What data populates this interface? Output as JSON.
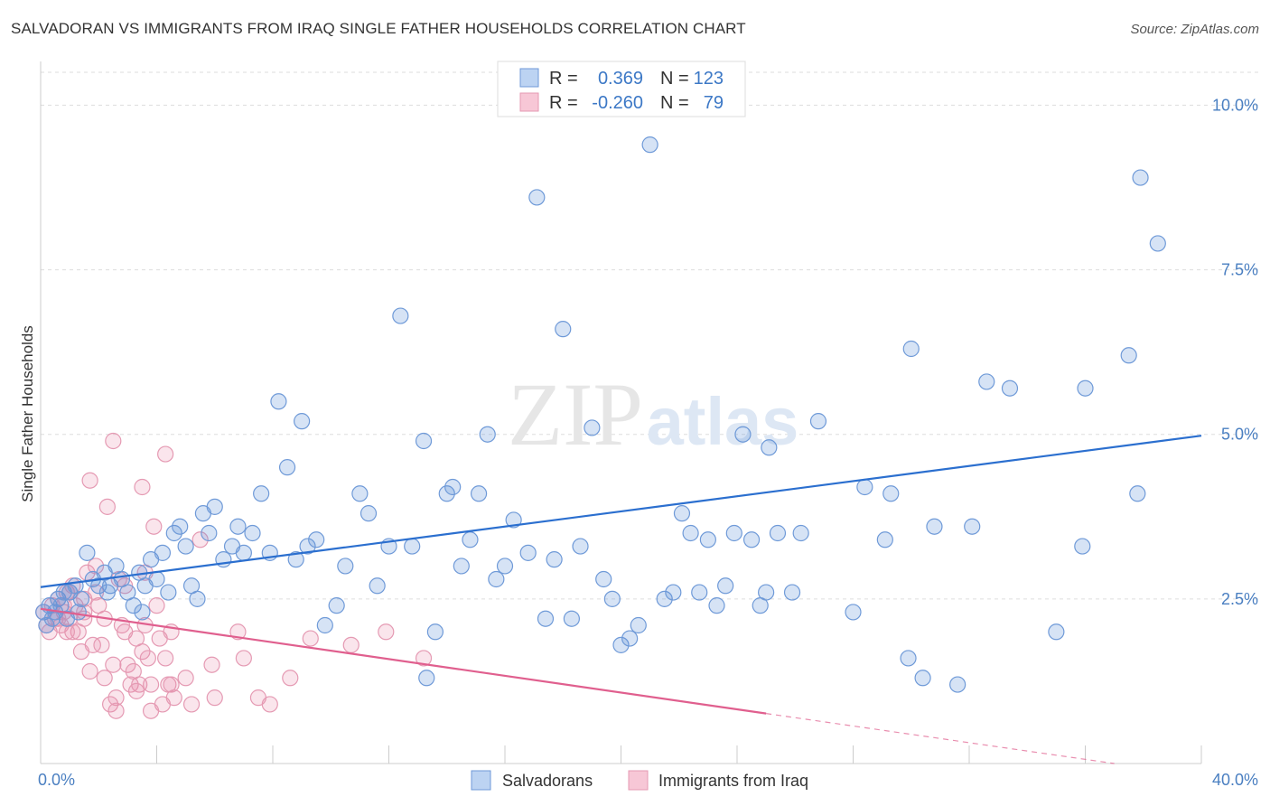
{
  "title": "SALVADORAN VS IMMIGRANTS FROM IRAQ SINGLE FATHER HOUSEHOLDS CORRELATION CHART",
  "source": "Source: ZipAtlas.com",
  "watermark": {
    "zip": "ZIP",
    "atlas": "atlas"
  },
  "colors": {
    "blue": "#5b8fd8",
    "blue_line": "#2b6fcf",
    "pink": "#e88aa8",
    "pink_line": "#e05f8e",
    "grid": "#dddddd",
    "tick": "#4a7fc1"
  },
  "legend_box": {
    "rows": [
      {
        "r_label": "R =",
        "r_value": "0.369",
        "n_label": "N =",
        "n_value": "123"
      },
      {
        "r_label": "R =",
        "r_value": "-0.260",
        "n_label": "N =",
        "n_value": "79"
      }
    ]
  },
  "chart_data": {
    "type": "scatter",
    "ylabel": "Single Father Households",
    "xlabel": "",
    "xlim": [
      0,
      40
    ],
    "ylim": [
      0,
      10.5
    ],
    "x_ticks": [
      "0.0%",
      "40.0%"
    ],
    "y_ticks": [
      {
        "value": 2.5,
        "label": "2.5%"
      },
      {
        "value": 5.0,
        "label": "5.0%"
      },
      {
        "value": 7.5,
        "label": "7.5%"
      },
      {
        "value": 10.0,
        "label": "10.0%"
      }
    ],
    "legend_position": "bottom",
    "series": [
      {
        "name": "Salvadorans",
        "color": "#5b8fd8",
        "trend": {
          "x0": 0,
          "y0": 2.68,
          "x1": 40,
          "y1": 4.98
        },
        "points": [
          [
            0.1,
            2.3
          ],
          [
            0.2,
            2.1
          ],
          [
            0.3,
            2.4
          ],
          [
            0.4,
            2.2
          ],
          [
            0.5,
            2.3
          ],
          [
            0.6,
            2.5
          ],
          [
            0.7,
            2.4
          ],
          [
            0.8,
            2.6
          ],
          [
            0.9,
            2.2
          ],
          [
            1.0,
            2.6
          ],
          [
            1.2,
            2.7
          ],
          [
            1.4,
            2.5
          ],
          [
            1.6,
            3.2
          ],
          [
            1.8,
            2.8
          ],
          [
            2.0,
            2.7
          ],
          [
            2.2,
            2.9
          ],
          [
            2.4,
            2.7
          ],
          [
            2.6,
            3.0
          ],
          [
            2.8,
            2.8
          ],
          [
            3.0,
            2.6
          ],
          [
            3.2,
            2.4
          ],
          [
            3.4,
            2.9
          ],
          [
            3.6,
            2.7
          ],
          [
            3.8,
            3.1
          ],
          [
            4.0,
            2.8
          ],
          [
            4.2,
            3.2
          ],
          [
            4.4,
            2.6
          ],
          [
            4.6,
            3.5
          ],
          [
            4.8,
            3.6
          ],
          [
            5.0,
            3.3
          ],
          [
            5.2,
            2.7
          ],
          [
            5.4,
            2.5
          ],
          [
            5.6,
            3.8
          ],
          [
            5.8,
            3.5
          ],
          [
            6.0,
            3.9
          ],
          [
            6.3,
            3.1
          ],
          [
            6.6,
            3.3
          ],
          [
            6.8,
            3.6
          ],
          [
            7.0,
            3.2
          ],
          [
            7.3,
            3.5
          ],
          [
            7.6,
            4.1
          ],
          [
            7.9,
            3.2
          ],
          [
            8.2,
            5.5
          ],
          [
            8.5,
            4.5
          ],
          [
            8.8,
            3.1
          ],
          [
            9.2,
            3.3
          ],
          [
            9.5,
            3.4
          ],
          [
            9.8,
            2.1
          ],
          [
            10.2,
            2.4
          ],
          [
            10.5,
            3.0
          ],
          [
            11.0,
            4.1
          ],
          [
            11.3,
            3.8
          ],
          [
            11.6,
            2.7
          ],
          [
            12.0,
            3.3
          ],
          [
            12.4,
            6.8
          ],
          [
            12.8,
            3.3
          ],
          [
            13.2,
            4.9
          ],
          [
            13.6,
            2.0
          ],
          [
            14.0,
            4.1
          ],
          [
            14.2,
            4.2
          ],
          [
            14.5,
            3.0
          ],
          [
            14.8,
            3.4
          ],
          [
            15.1,
            4.1
          ],
          [
            15.4,
            5.0
          ],
          [
            15.7,
            2.8
          ],
          [
            16.0,
            3.0
          ],
          [
            16.3,
            3.7
          ],
          [
            16.8,
            3.2
          ],
          [
            17.1,
            8.6
          ],
          [
            17.4,
            2.2
          ],
          [
            17.7,
            3.1
          ],
          [
            18.0,
            6.6
          ],
          [
            18.3,
            2.2
          ],
          [
            18.6,
            3.3
          ],
          [
            19.0,
            5.1
          ],
          [
            19.4,
            2.8
          ],
          [
            19.7,
            2.5
          ],
          [
            20.0,
            1.8
          ],
          [
            20.3,
            1.9
          ],
          [
            20.6,
            2.1
          ],
          [
            21.0,
            9.4
          ],
          [
            21.5,
            2.5
          ],
          [
            21.8,
            2.6
          ],
          [
            22.1,
            3.8
          ],
          [
            22.4,
            3.5
          ],
          [
            22.7,
            2.6
          ],
          [
            23.0,
            3.4
          ],
          [
            23.3,
            2.4
          ],
          [
            23.6,
            2.7
          ],
          [
            23.9,
            3.5
          ],
          [
            24.2,
            5.0
          ],
          [
            24.5,
            3.4
          ],
          [
            24.8,
            2.4
          ],
          [
            25.1,
            4.8
          ],
          [
            25.4,
            3.5
          ],
          [
            25.9,
            2.6
          ],
          [
            26.2,
            3.5
          ],
          [
            26.8,
            5.2
          ],
          [
            28.0,
            2.3
          ],
          [
            28.4,
            4.2
          ],
          [
            29.1,
            3.4
          ],
          [
            29.3,
            4.1
          ],
          [
            29.9,
            1.6
          ],
          [
            30.0,
            6.3
          ],
          [
            30.4,
            1.3
          ],
          [
            30.8,
            3.6
          ],
          [
            31.6,
            1.2
          ],
          [
            32.1,
            3.6
          ],
          [
            32.6,
            5.8
          ],
          [
            33.4,
            5.7
          ],
          [
            35.0,
            2.0
          ],
          [
            35.9,
            3.3
          ],
          [
            36.0,
            5.7
          ],
          [
            37.5,
            6.2
          ],
          [
            37.8,
            4.1
          ],
          [
            37.9,
            8.9
          ],
          [
            38.5,
            7.9
          ],
          [
            13.3,
            1.3
          ],
          [
            9.0,
            5.2
          ],
          [
            3.5,
            2.3
          ],
          [
            2.3,
            2.6
          ],
          [
            1.3,
            2.3
          ],
          [
            25.0,
            2.6
          ]
        ]
      },
      {
        "name": "Immigrants from Iraq",
        "color": "#e88aa8",
        "trend": {
          "x0": 0,
          "y0": 2.35,
          "x1": 25,
          "y1": 0.76
        },
        "trend_dashed": {
          "x0": 25,
          "y0": 0.76,
          "x1": 37,
          "y1": 0.0
        },
        "points": [
          [
            0.1,
            2.3
          ],
          [
            0.2,
            2.1
          ],
          [
            0.3,
            2.0
          ],
          [
            0.4,
            2.4
          ],
          [
            0.5,
            2.2
          ],
          [
            0.6,
            2.5
          ],
          [
            0.7,
            2.1
          ],
          [
            0.8,
            2.3
          ],
          [
            0.9,
            2.6
          ],
          [
            1.0,
            2.2
          ],
          [
            1.1,
            2.7
          ],
          [
            1.2,
            2.4
          ],
          [
            1.3,
            2.0
          ],
          [
            1.4,
            1.7
          ],
          [
            1.5,
            2.2
          ],
          [
            1.6,
            2.9
          ],
          [
            1.7,
            1.4
          ],
          [
            1.8,
            1.8
          ],
          [
            1.9,
            3.0
          ],
          [
            2.0,
            2.4
          ],
          [
            2.1,
            1.8
          ],
          [
            2.2,
            1.3
          ],
          [
            2.3,
            3.9
          ],
          [
            2.4,
            0.9
          ],
          [
            2.5,
            1.5
          ],
          [
            2.6,
            1.0
          ],
          [
            2.7,
            2.8
          ],
          [
            2.8,
            2.1
          ],
          [
            2.9,
            2.0
          ],
          [
            3.0,
            1.5
          ],
          [
            3.1,
            1.2
          ],
          [
            3.2,
            1.4
          ],
          [
            3.3,
            1.9
          ],
          [
            3.4,
            1.2
          ],
          [
            3.5,
            1.7
          ],
          [
            3.6,
            2.1
          ],
          [
            3.7,
            1.6
          ],
          [
            3.8,
            1.2
          ],
          [
            3.9,
            3.6
          ],
          [
            4.0,
            2.4
          ],
          [
            4.1,
            1.9
          ],
          [
            4.2,
            0.9
          ],
          [
            4.3,
            1.6
          ],
          [
            4.4,
            1.2
          ],
          [
            4.5,
            1.2
          ],
          [
            4.6,
            1.0
          ],
          [
            5.0,
            1.3
          ],
          [
            5.2,
            0.9
          ],
          [
            5.5,
            3.4
          ],
          [
            6.0,
            1.0
          ],
          [
            2.5,
            4.9
          ],
          [
            1.7,
            4.3
          ],
          [
            3.5,
            4.2
          ],
          [
            4.3,
            4.7
          ],
          [
            1.0,
            2.6
          ],
          [
            0.8,
            2.4
          ],
          [
            0.6,
            2.2
          ],
          [
            1.1,
            2.0
          ],
          [
            1.5,
            2.3
          ],
          [
            1.9,
            2.6
          ],
          [
            2.2,
            2.2
          ],
          [
            2.6,
            0.8
          ],
          [
            2.9,
            2.7
          ],
          [
            3.6,
            2.9
          ],
          [
            3.3,
            1.1
          ],
          [
            3.8,
            0.8
          ],
          [
            4.5,
            2.0
          ],
          [
            5.9,
            1.5
          ],
          [
            6.8,
            2.0
          ],
          [
            7.0,
            1.6
          ],
          [
            7.5,
            1.0
          ],
          [
            7.9,
            0.9
          ],
          [
            8.6,
            1.3
          ],
          [
            9.3,
            1.9
          ],
          [
            10.7,
            1.8
          ],
          [
            11.9,
            2.0
          ],
          [
            13.2,
            1.6
          ],
          [
            1.5,
            2.5
          ],
          [
            0.9,
            2.0
          ]
        ]
      }
    ]
  }
}
